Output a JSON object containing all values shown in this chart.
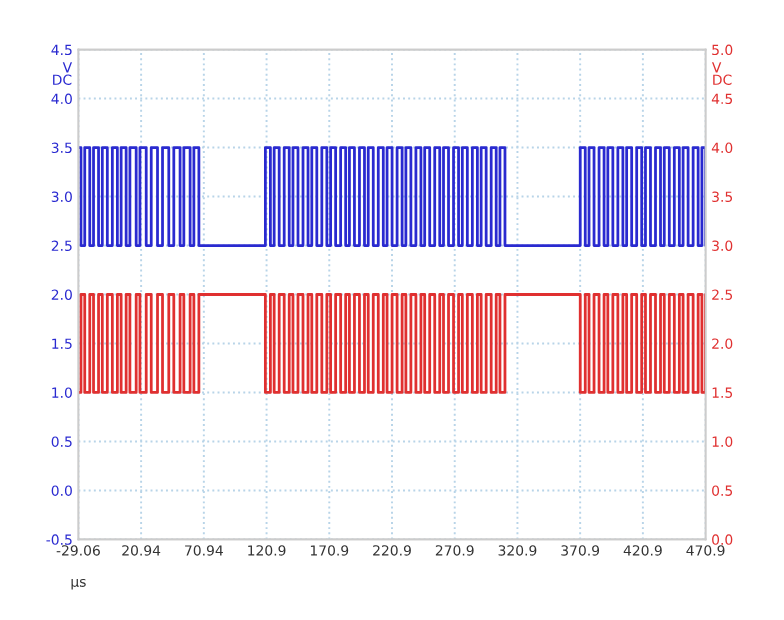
{
  "chart_data": {
    "type": "step",
    "xlabel": "μs",
    "ylabel": "V\nDC",
    "y2label": "V\nDC",
    "xlim": [
      -29.06,
      470.94
    ],
    "xticks": [
      {
        "value": -29.06,
        "label": "-29.06"
      },
      {
        "value": 20.94,
        "label": "20.94"
      },
      {
        "value": 70.94,
        "label": "70.94"
      },
      {
        "value": 120.94,
        "label": "120.9"
      },
      {
        "value": 170.94,
        "label": "170.9"
      },
      {
        "value": 220.94,
        "label": "220.9"
      },
      {
        "value": 270.94,
        "label": "270.9"
      },
      {
        "value": 320.94,
        "label": "320.9"
      },
      {
        "value": 370.94,
        "label": "370.9"
      },
      {
        "value": 420.94,
        "label": "420.9"
      },
      {
        "value": 470.94,
        "label": "470.9"
      }
    ],
    "ylim": [
      -0.5,
      4.5
    ],
    "yticks": [
      -0.5,
      {
        "value": 0,
        "label": "0.0"
      },
      0.5,
      {
        "value": 1,
        "label": "1.0"
      },
      1.5,
      {
        "value": 2,
        "label": "2.0"
      },
      2.5,
      {
        "value": 3,
        "label": "3.0"
      },
      3.5,
      {
        "value": 4,
        "label": "4.0"
      },
      4.5
    ],
    "y2lim": [
      0.0,
      5.0
    ],
    "y2ticks": [
      {
        "value": 0,
        "label": "0.0"
      },
      0.5,
      {
        "value": 1,
        "label": "1.0"
      },
      1.5,
      {
        "value": 2,
        "label": "2.0"
      },
      2.5,
      {
        "value": 3,
        "label": "3.0"
      },
      3.5,
      {
        "value": 4,
        "label": "4.0"
      },
      4.5,
      {
        "value": 5,
        "label": "5.0"
      }
    ],
    "grid": true,
    "x": [
      -29.06,
      -27,
      -24,
      -20,
      -17,
      -13,
      -10,
      -6,
      -2,
      2,
      5,
      9,
      12,
      17,
      20,
      25,
      29,
      34,
      38,
      43,
      47,
      52,
      55,
      60,
      63,
      67,
      120,
      124,
      127,
      131,
      135,
      139,
      142,
      146,
      150,
      154,
      157,
      161,
      165,
      169,
      172,
      176,
      180,
      184,
      187,
      191,
      195,
      199,
      202,
      206,
      210,
      214,
      217,
      221,
      225,
      229,
      232,
      236,
      240,
      244,
      247,
      251,
      255,
      259,
      262,
      266,
      270,
      274,
      277,
      281,
      285,
      289,
      292,
      296,
      300,
      304,
      307,
      311,
      371,
      375,
      378,
      382,
      386,
      390,
      393,
      397,
      401,
      405,
      408,
      412,
      416,
      420,
      423,
      427,
      431,
      435,
      438,
      442,
      446,
      450,
      453,
      457,
      461,
      465,
      468,
      470.9
    ],
    "series": [
      {
        "color": "#2a2ad0",
        "values": [
          3.5,
          2.5,
          3.5,
          2.5,
          3.5,
          2.5,
          3.5,
          2.5,
          3.5,
          2.5,
          3.5,
          2.5,
          3.5,
          2.5,
          3.5,
          2.5,
          3.5,
          2.5,
          3.5,
          2.5,
          3.5,
          2.5,
          3.5,
          2.5,
          3.5,
          2.5,
          3.5,
          2.5,
          3.5,
          2.5,
          3.5,
          2.5,
          3.5,
          2.5,
          3.5,
          2.5,
          3.5,
          2.5,
          3.5,
          2.5,
          3.5,
          2.5,
          3.5,
          2.5,
          3.5,
          2.5,
          3.5,
          2.5,
          3.5,
          2.5,
          3.5,
          2.5,
          3.5,
          2.5,
          3.5,
          2.5,
          3.5,
          2.5,
          3.5,
          2.5,
          3.5,
          2.5,
          3.5,
          2.5,
          3.5,
          2.5,
          3.5,
          2.5,
          3.5,
          2.5,
          3.5,
          2.5,
          3.5,
          2.5,
          3.5,
          2.5,
          3.5,
          2.5,
          3.5,
          2.5,
          3.5,
          2.5,
          3.5,
          2.5,
          3.5,
          2.5,
          3.5,
          2.5,
          3.5,
          2.5,
          3.5,
          2.5,
          3.5,
          2.5,
          3.5,
          2.5,
          3.5,
          2.5,
          3.5,
          2.5,
          3.5,
          2.5,
          3.5,
          2.5,
          3.5,
          2.5
        ]
      },
      {
        "color": "#e03030",
        "axis": "y2",
        "values": [
          1.5,
          2.5,
          1.5,
          2.5,
          1.5,
          2.5,
          1.5,
          2.5,
          1.5,
          2.5,
          1.5,
          2.5,
          1.5,
          2.5,
          1.5,
          2.5,
          1.5,
          2.5,
          1.5,
          2.5,
          1.5,
          2.5,
          1.5,
          2.5,
          1.5,
          2.5,
          1.5,
          2.5,
          1.5,
          2.5,
          1.5,
          2.5,
          1.5,
          2.5,
          1.5,
          2.5,
          1.5,
          2.5,
          1.5,
          2.5,
          1.5,
          2.5,
          1.5,
          2.5,
          1.5,
          2.5,
          1.5,
          2.5,
          1.5,
          2.5,
          1.5,
          2.5,
          1.5,
          2.5,
          1.5,
          2.5,
          1.5,
          2.5,
          1.5,
          2.5,
          1.5,
          2.5,
          1.5,
          2.5,
          1.5,
          2.5,
          1.5,
          2.5,
          1.5,
          2.5,
          1.5,
          2.5,
          1.5,
          2.5,
          1.5,
          2.5,
          1.5,
          2.5,
          1.5,
          2.5,
          1.5,
          2.5,
          1.5,
          2.5,
          1.5,
          2.5,
          1.5,
          2.5,
          1.5,
          2.5,
          1.5,
          2.5,
          1.5,
          2.5,
          1.5,
          2.5,
          1.5,
          2.5,
          1.5,
          2.5,
          1.5,
          2.5,
          1.5,
          2.5,
          1.5,
          2.5
        ]
      }
    ]
  }
}
